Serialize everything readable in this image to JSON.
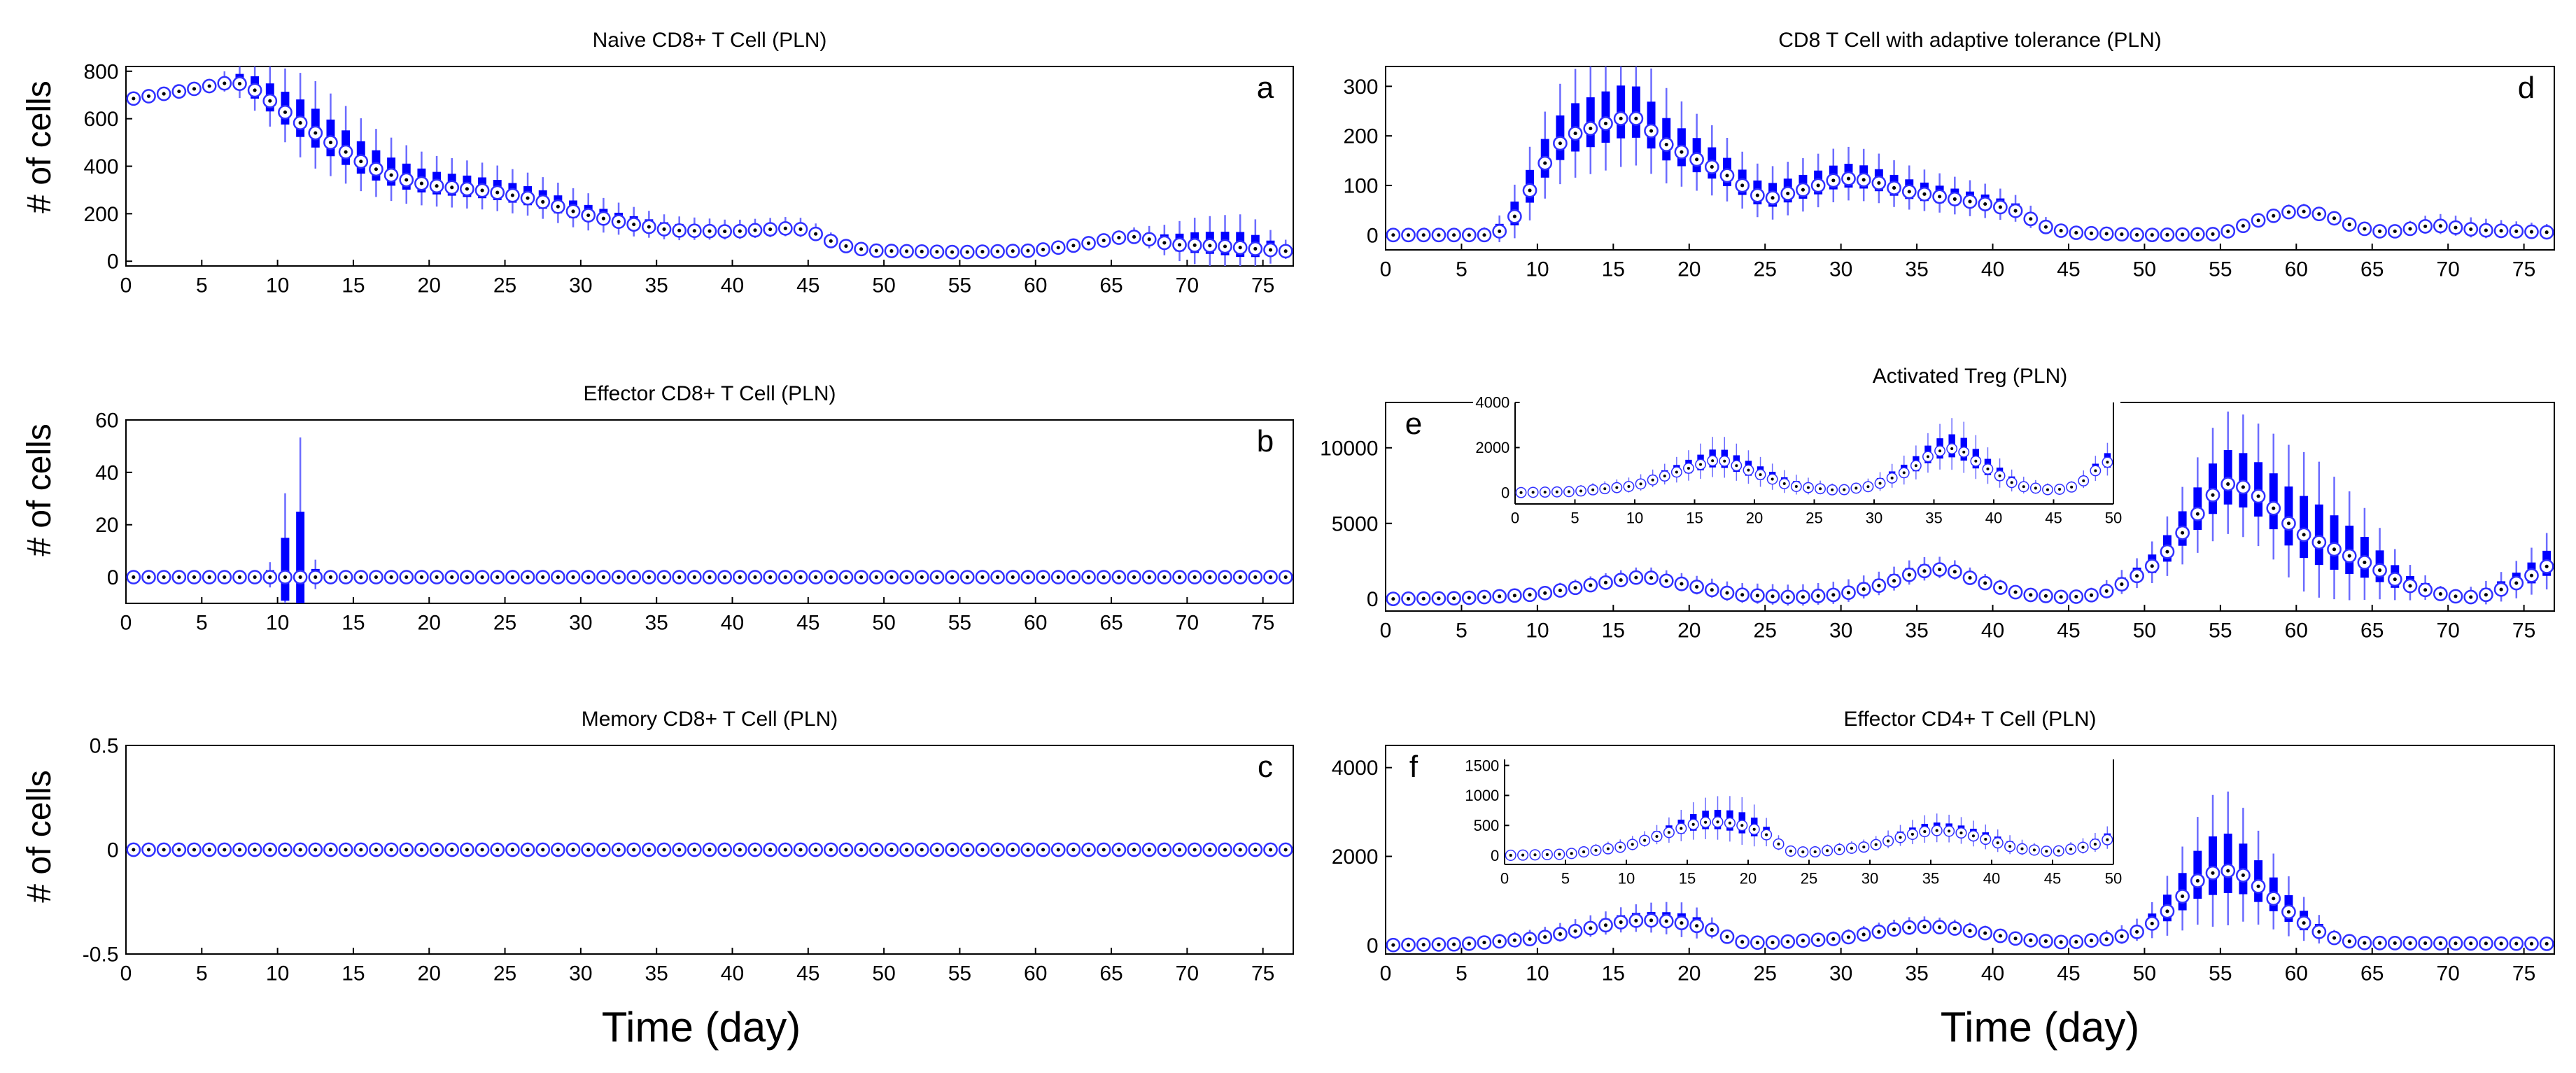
{
  "figure": {
    "xlabel_left": "Time (day)",
    "xlabel_right": "Time (day)",
    "ylabel": "# of cells",
    "colors": {
      "box": "#0000ff",
      "whisker": "#6b6bff",
      "median_ring": "#3030ff",
      "axis": "#000000"
    }
  },
  "chart_data": [
    {
      "id": "a",
      "panel_letter": "a",
      "type": "box",
      "title": "Naive CD8+ T Cell (PLN)",
      "ylabel": "# of cells",
      "xlim": [
        0,
        77
      ],
      "ylim": [
        -20,
        820
      ],
      "xticks": [
        0,
        5,
        10,
        15,
        20,
        25,
        30,
        35,
        40,
        45,
        50,
        55,
        60,
        65,
        70,
        75
      ],
      "yticks": [
        0,
        200,
        400,
        600,
        800
      ],
      "median_curve": [
        [
          0,
          680
        ],
        [
          4,
          720
        ],
        [
          7,
          755
        ],
        [
          8,
          740
        ],
        [
          9,
          700
        ],
        [
          10,
          650
        ],
        [
          12,
          560
        ],
        [
          14,
          480
        ],
        [
          16,
          400
        ],
        [
          18,
          350
        ],
        [
          20,
          320
        ],
        [
          24,
          295
        ],
        [
          27,
          260
        ],
        [
          30,
          200
        ],
        [
          33,
          160
        ],
        [
          36,
          130
        ],
        [
          40,
          125
        ],
        [
          44,
          140
        ],
        [
          45,
          130
        ],
        [
          47,
          70
        ],
        [
          49,
          45
        ],
        [
          55,
          38
        ],
        [
          60,
          45
        ],
        [
          63,
          70
        ],
        [
          66,
          105
        ],
        [
          67,
          100
        ],
        [
          69,
          70
        ],
        [
          72,
          65
        ],
        [
          75,
          50
        ],
        [
          77,
          40
        ]
      ],
      "spread": [
        [
          0,
          10
        ],
        [
          6,
          20
        ],
        [
          9,
          90
        ],
        [
          12,
          140
        ],
        [
          16,
          110
        ],
        [
          20,
          80
        ],
        [
          25,
          70
        ],
        [
          30,
          60
        ],
        [
          35,
          40
        ],
        [
          40,
          30
        ],
        [
          45,
          30
        ],
        [
          48,
          15
        ],
        [
          60,
          10
        ],
        [
          66,
          20
        ],
        [
          68,
          40
        ],
        [
          70,
          70
        ],
        [
          74,
          90
        ],
        [
          76,
          40
        ],
        [
          77,
          20
        ]
      ]
    },
    {
      "id": "b",
      "panel_letter": "b",
      "type": "box",
      "title": "Effector CD8+ T Cell (PLN)",
      "ylabel": "# of cells",
      "xlim": [
        0,
        77
      ],
      "ylim": [
        -10,
        60
      ],
      "xticks": [
        0,
        5,
        10,
        15,
        20,
        25,
        30,
        35,
        40,
        45,
        50,
        55,
        60,
        65,
        70,
        75
      ],
      "yticks": [
        0,
        20,
        40,
        60
      ],
      "median_curve": [
        [
          0,
          0
        ],
        [
          77,
          0
        ]
      ],
      "spread": [
        [
          0,
          0
        ],
        [
          9,
          0
        ],
        [
          9.7,
          5
        ],
        [
          10.2,
          15
        ],
        [
          10.8,
          25
        ],
        [
          11.4,
          35
        ],
        [
          12,
          25
        ],
        [
          12.6,
          0
        ],
        [
          77,
          0
        ]
      ]
    },
    {
      "id": "c",
      "panel_letter": "c",
      "type": "box",
      "title": "Memory CD8+ T Cell (PLN)",
      "ylabel": "# of cells",
      "xlim": [
        0,
        77
      ],
      "ylim": [
        -0.5,
        0.5
      ],
      "xticks": [
        0,
        5,
        10,
        15,
        20,
        25,
        30,
        35,
        40,
        45,
        50,
        55,
        60,
        65,
        70,
        75
      ],
      "yticks": [
        -0.5,
        0,
        0.5
      ],
      "median_curve": [
        [
          0,
          0
        ],
        [
          77,
          0
        ]
      ],
      "spread": [
        [
          0,
          0
        ],
        [
          77,
          0
        ]
      ]
    },
    {
      "id": "d",
      "panel_letter": "d",
      "type": "box",
      "title": "CD8 T Cell with adaptive tolerance (PLN)",
      "ylabel": "",
      "xlim": [
        0,
        77
      ],
      "ylim": [
        -30,
        340
      ],
      "xticks": [
        0,
        5,
        10,
        15,
        20,
        25,
        30,
        35,
        40,
        45,
        50,
        55,
        60,
        65,
        70,
        75
      ],
      "yticks": [
        0,
        100,
        200,
        300
      ],
      "median_curve": [
        [
          0,
          0
        ],
        [
          7,
          0
        ],
        [
          8,
          15
        ],
        [
          9,
          60
        ],
        [
          10,
          120
        ],
        [
          11,
          170
        ],
        [
          12,
          200
        ],
        [
          14,
          220
        ],
        [
          16,
          240
        ],
        [
          17,
          230
        ],
        [
          18,
          190
        ],
        [
          20,
          160
        ],
        [
          22,
          130
        ],
        [
          24,
          90
        ],
        [
          25,
          70
        ],
        [
          26,
          80
        ],
        [
          28,
          95
        ],
        [
          30,
          115
        ],
        [
          32,
          110
        ],
        [
          34,
          90
        ],
        [
          37,
          75
        ],
        [
          40,
          60
        ],
        [
          42,
          45
        ],
        [
          43,
          20
        ],
        [
          45,
          5
        ],
        [
          50,
          0
        ],
        [
          55,
          2
        ],
        [
          58,
          35
        ],
        [
          60,
          50
        ],
        [
          62,
          40
        ],
        [
          64,
          15
        ],
        [
          66,
          5
        ],
        [
          69,
          20
        ],
        [
          72,
          10
        ],
        [
          77,
          5
        ]
      ],
      "spread": [
        [
          0,
          5
        ],
        [
          7,
          10
        ],
        [
          9,
          50
        ],
        [
          12,
          80
        ],
        [
          16,
          90
        ],
        [
          20,
          60
        ],
        [
          24,
          40
        ],
        [
          28,
          40
        ],
        [
          31,
          40
        ],
        [
          36,
          30
        ],
        [
          40,
          25
        ],
        [
          43,
          15
        ],
        [
          45,
          5
        ],
        [
          55,
          5
        ],
        [
          60,
          10
        ],
        [
          66,
          5
        ],
        [
          69,
          15
        ],
        [
          72,
          15
        ],
        [
          77,
          10
        ]
      ]
    },
    {
      "id": "e",
      "panel_letter": "e",
      "type": "box",
      "title": "Activated Treg (PLN)",
      "ylabel": "",
      "xlim": [
        0,
        77
      ],
      "ylim": [
        -800,
        13000
      ],
      "xticks": [
        0,
        5,
        10,
        15,
        20,
        25,
        30,
        35,
        40,
        45,
        50,
        55,
        60,
        65,
        70,
        75
      ],
      "yticks": [
        0,
        5000,
        10000
      ],
      "median_curve": [
        [
          0,
          0
        ],
        [
          5,
          50
        ],
        [
          10,
          300
        ],
        [
          14,
          1000
        ],
        [
          17,
          1500
        ],
        [
          20,
          900
        ],
        [
          23,
          300
        ],
        [
          27,
          100
        ],
        [
          30,
          300
        ],
        [
          33,
          1000
        ],
        [
          35,
          1800
        ],
        [
          37,
          2000
        ],
        [
          39,
          1200
        ],
        [
          42,
          300
        ],
        [
          45,
          100
        ],
        [
          47,
          300
        ],
        [
          49,
          1200
        ],
        [
          51,
          2500
        ],
        [
          53,
          5000
        ],
        [
          55,
          7500
        ],
        [
          56,
          7700
        ],
        [
          58,
          6500
        ],
        [
          60,
          4500
        ],
        [
          62,
          3500
        ],
        [
          65,
          2200
        ],
        [
          67,
          1000
        ],
        [
          70,
          200
        ],
        [
          72,
          100
        ],
        [
          74,
          800
        ],
        [
          76,
          1800
        ],
        [
          77,
          2500
        ]
      ],
      "spread": [
        [
          0,
          50
        ],
        [
          15,
          400
        ],
        [
          35,
          600
        ],
        [
          45,
          100
        ],
        [
          50,
          800
        ],
        [
          55,
          3000
        ],
        [
          58,
          3000
        ],
        [
          61,
          3500
        ],
        [
          64,
          2500
        ],
        [
          67,
          1000
        ],
        [
          70,
          200
        ],
        [
          74,
          800
        ],
        [
          77,
          1500
        ]
      ],
      "inset": {
        "xlim": [
          0,
          50
        ],
        "ylim": [
          -500,
          4000
        ],
        "xticks": [
          0,
          5,
          10,
          15,
          20,
          25,
          30,
          35,
          40,
          45,
          50
        ],
        "yticks": [
          0,
          2000,
          4000
        ],
        "median_curve": [
          [
            0,
            0
          ],
          [
            5,
            50
          ],
          [
            10,
            300
          ],
          [
            14,
            1000
          ],
          [
            17,
            1500
          ],
          [
            20,
            900
          ],
          [
            23,
            300
          ],
          [
            27,
            100
          ],
          [
            30,
            300
          ],
          [
            33,
            1000
          ],
          [
            35,
            1800
          ],
          [
            37,
            2000
          ],
          [
            39,
            1200
          ],
          [
            42,
            300
          ],
          [
            45,
            100
          ],
          [
            47,
            300
          ],
          [
            49,
            1200
          ],
          [
            50,
            1500
          ]
        ],
        "spread": [
          [
            0,
            50
          ],
          [
            12,
            300
          ],
          [
            17,
            700
          ],
          [
            22,
            400
          ],
          [
            28,
            100
          ],
          [
            34,
            600
          ],
          [
            37,
            900
          ],
          [
            42,
            300
          ],
          [
            46,
            100
          ],
          [
            50,
            600
          ]
        ]
      }
    },
    {
      "id": "f",
      "panel_letter": "f",
      "type": "box",
      "title": "Effector CD4+ T Cell (PLN)",
      "ylabel": "",
      "xlim": [
        0,
        77
      ],
      "ylim": [
        -200,
        4500
      ],
      "xticks": [
        0,
        5,
        10,
        15,
        20,
        25,
        30,
        35,
        40,
        45,
        50,
        55,
        60,
        65,
        70,
        75
      ],
      "yticks": [
        0,
        2000,
        4000
      ],
      "median_curve": [
        [
          0,
          0
        ],
        [
          5,
          20
        ],
        [
          10,
          150
        ],
        [
          13,
          350
        ],
        [
          16,
          550
        ],
        [
          18,
          560
        ],
        [
          20,
          480
        ],
        [
          22,
          300
        ],
        [
          23,
          80
        ],
        [
          25,
          50
        ],
        [
          30,
          150
        ],
        [
          33,
          330
        ],
        [
          35,
          420
        ],
        [
          37,
          400
        ],
        [
          39,
          300
        ],
        [
          42,
          120
        ],
        [
          45,
          60
        ],
        [
          48,
          150
        ],
        [
          50,
          350
        ],
        [
          52,
          900
        ],
        [
          53,
          1300
        ],
        [
          54,
          1600
        ],
        [
          56,
          1700
        ],
        [
          58,
          1200
        ],
        [
          60,
          600
        ],
        [
          62,
          200
        ],
        [
          64,
          50
        ],
        [
          77,
          30
        ]
      ],
      "spread": [
        [
          0,
          10
        ],
        [
          15,
          200
        ],
        [
          20,
          300
        ],
        [
          23,
          50
        ],
        [
          35,
          150
        ],
        [
          45,
          50
        ],
        [
          50,
          200
        ],
        [
          53,
          800
        ],
        [
          55,
          1200
        ],
        [
          58,
          700
        ],
        [
          61,
          300
        ],
        [
          63,
          50
        ],
        [
          77,
          20
        ]
      ],
      "inset": {
        "xlim": [
          0,
          50
        ],
        "ylim": [
          -150,
          1600
        ],
        "xticks": [
          0,
          5,
          10,
          15,
          20,
          25,
          30,
          35,
          40,
          45,
          50
        ],
        "yticks": [
          0,
          500,
          1000,
          1500
        ],
        "median_curve": [
          [
            0,
            0
          ],
          [
            5,
            20
          ],
          [
            10,
            150
          ],
          [
            13,
            350
          ],
          [
            16,
            550
          ],
          [
            18,
            560
          ],
          [
            20,
            480
          ],
          [
            22,
            300
          ],
          [
            23,
            80
          ],
          [
            25,
            50
          ],
          [
            30,
            150
          ],
          [
            33,
            330
          ],
          [
            35,
            420
          ],
          [
            37,
            400
          ],
          [
            39,
            300
          ],
          [
            42,
            120
          ],
          [
            45,
            60
          ],
          [
            48,
            150
          ],
          [
            50,
            300
          ]
        ],
        "spread": [
          [
            0,
            10
          ],
          [
            12,
            100
          ],
          [
            16,
            250
          ],
          [
            20,
            300
          ],
          [
            23,
            50
          ],
          [
            30,
            80
          ],
          [
            35,
            180
          ],
          [
            40,
            150
          ],
          [
            45,
            40
          ],
          [
            50,
            150
          ]
        ]
      }
    }
  ]
}
